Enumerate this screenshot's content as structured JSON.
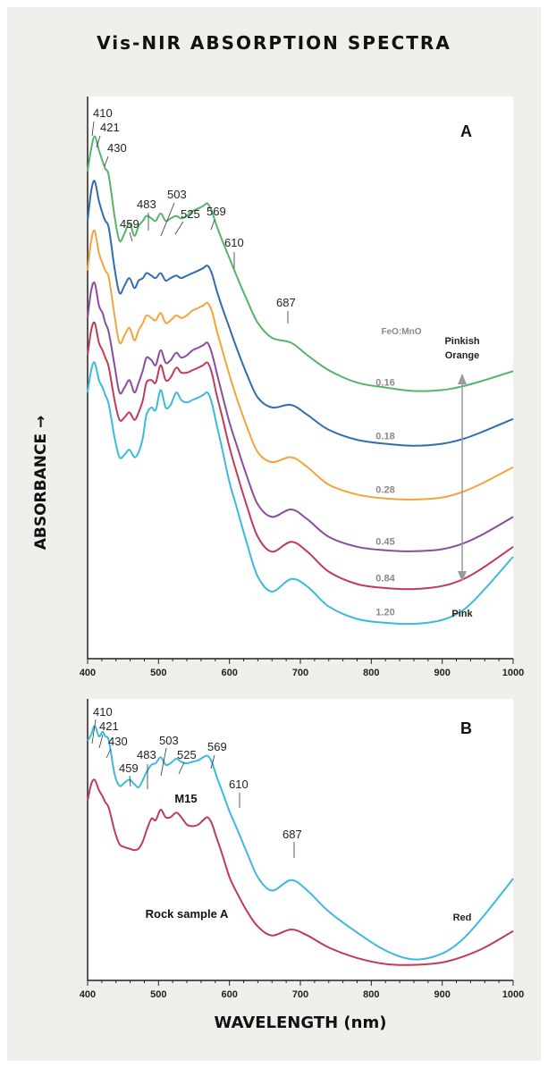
{
  "title": "Vis-NIR ABSORPTION SPECTRA",
  "ylabel": "ABSORBANCE",
  "ylabel_arrow": "→",
  "xlabel": "WAVELENGTH (nm)",
  "colors": {
    "green": "#56b46a",
    "blue": "#2f6db0",
    "orange": "#f3a43c",
    "purple": "#8a4d9e",
    "red": "#c23a5a",
    "cyan": "#3cbadd",
    "ratio_text": "#8a8a8a",
    "arrow": "#9a9a9a"
  },
  "chart_data": [
    {
      "panel_label": "A",
      "type": "line",
      "xlim": [
        400,
        1000
      ],
      "xticks": [
        400,
        500,
        600,
        700,
        800,
        900,
        1000
      ],
      "grid": false,
      "y_units": "relative absorbance (no scale)",
      "legend_title": "FeO:MnO",
      "series": [
        {
          "name": "0.16",
          "color": "#56b46a",
          "x": [
            400,
            405,
            410,
            416,
            421,
            425,
            430,
            438,
            445,
            452,
            459,
            466,
            472,
            478,
            483,
            490,
            496,
            503,
            510,
            517,
            525,
            532,
            540,
            548,
            556,
            563,
            569,
            575,
            582,
            590,
            600,
            610,
            625,
            640,
            660,
            687,
            710,
            740,
            780,
            820,
            860,
            900,
            930,
            960,
            1000
          ],
          "y": [
            9.8,
            10.25,
            10.5,
            10.22,
            10.0,
            9.85,
            9.7,
            8.9,
            8.4,
            8.55,
            8.75,
            8.5,
            8.7,
            8.8,
            8.9,
            8.85,
            8.8,
            8.95,
            8.8,
            8.85,
            8.9,
            8.85,
            8.9,
            9.0,
            9.05,
            9.1,
            9.15,
            9.0,
            8.7,
            8.4,
            8.05,
            7.7,
            7.2,
            6.75,
            6.45,
            6.35,
            6.1,
            5.8,
            5.55,
            5.45,
            5.38,
            5.4,
            5.48,
            5.6,
            5.78
          ]
        },
        {
          "name": "0.18",
          "color": "#2f6db0",
          "x": [
            400,
            405,
            410,
            416,
            421,
            425,
            430,
            438,
            445,
            452,
            459,
            466,
            472,
            478,
            483,
            490,
            496,
            503,
            510,
            517,
            525,
            532,
            540,
            548,
            556,
            563,
            569,
            575,
            582,
            590,
            600,
            610,
            625,
            640,
            660,
            687,
            710,
            740,
            780,
            820,
            860,
            900,
            930,
            960,
            1000
          ],
          "y": [
            8.8,
            9.4,
            9.6,
            9.2,
            8.95,
            8.8,
            8.65,
            7.85,
            7.35,
            7.5,
            7.65,
            7.45,
            7.6,
            7.65,
            7.75,
            7.7,
            7.65,
            7.75,
            7.6,
            7.65,
            7.7,
            7.65,
            7.7,
            7.75,
            7.8,
            7.85,
            7.9,
            7.75,
            7.4,
            7.05,
            6.65,
            6.25,
            5.7,
            5.25,
            5.05,
            5.1,
            4.9,
            4.6,
            4.4,
            4.32,
            4.28,
            4.32,
            4.42,
            4.58,
            4.82
          ]
        },
        {
          "name": "0.28",
          "color": "#f3a43c",
          "x": [
            400,
            405,
            410,
            416,
            421,
            425,
            430,
            438,
            445,
            452,
            459,
            466,
            472,
            478,
            483,
            490,
            496,
            503,
            510,
            517,
            525,
            532,
            540,
            548,
            556,
            563,
            569,
            575,
            582,
            590,
            600,
            610,
            625,
            640,
            660,
            687,
            710,
            740,
            780,
            820,
            860,
            900,
            930,
            960,
            1000
          ],
          "y": [
            7.8,
            8.4,
            8.6,
            8.15,
            7.95,
            7.8,
            7.65,
            6.9,
            6.35,
            6.5,
            6.65,
            6.4,
            6.6,
            6.75,
            6.9,
            6.85,
            6.8,
            6.95,
            6.75,
            6.8,
            6.9,
            6.85,
            6.9,
            7.0,
            7.05,
            7.1,
            7.15,
            7.0,
            6.6,
            6.2,
            5.7,
            5.25,
            4.65,
            4.15,
            3.95,
            4.05,
            3.85,
            3.5,
            3.3,
            3.22,
            3.2,
            3.24,
            3.36,
            3.55,
            3.85
          ]
        },
        {
          "name": "0.45",
          "color": "#8a4d9e",
          "x": [
            400,
            405,
            410,
            416,
            421,
            425,
            430,
            438,
            445,
            452,
            459,
            466,
            472,
            478,
            483,
            490,
            496,
            503,
            510,
            517,
            525,
            532,
            540,
            548,
            556,
            563,
            569,
            575,
            582,
            590,
            600,
            610,
            625,
            640,
            660,
            687,
            710,
            740,
            780,
            820,
            860,
            900,
            930,
            960,
            1000
          ],
          "y": [
            6.85,
            7.4,
            7.55,
            7.1,
            6.95,
            6.75,
            6.55,
            5.9,
            5.35,
            5.45,
            5.6,
            5.35,
            5.55,
            5.8,
            6.05,
            6.0,
            5.9,
            6.2,
            5.95,
            6.0,
            6.15,
            6.05,
            6.1,
            6.2,
            6.25,
            6.3,
            6.35,
            6.15,
            5.75,
            5.3,
            4.75,
            4.3,
            3.65,
            3.1,
            2.85,
            3.0,
            2.8,
            2.45,
            2.25,
            2.18,
            2.16,
            2.2,
            2.32,
            2.52,
            2.85
          ]
        },
        {
          "name": "0.84",
          "color": "#c23a5a",
          "x": [
            400,
            405,
            410,
            416,
            421,
            425,
            430,
            438,
            445,
            452,
            459,
            466,
            472,
            478,
            483,
            490,
            496,
            503,
            510,
            517,
            525,
            532,
            540,
            548,
            556,
            563,
            569,
            575,
            582,
            590,
            600,
            610,
            625,
            640,
            660,
            687,
            710,
            740,
            780,
            820,
            860,
            900,
            930,
            960,
            1000
          ],
          "y": [
            6.1,
            6.6,
            6.75,
            6.35,
            6.2,
            6.05,
            5.85,
            5.2,
            4.8,
            4.85,
            4.95,
            4.8,
            4.95,
            5.2,
            5.55,
            5.6,
            5.55,
            5.9,
            5.6,
            5.65,
            5.85,
            5.75,
            5.75,
            5.8,
            5.85,
            5.9,
            5.95,
            5.75,
            5.3,
            4.85,
            4.25,
            3.75,
            3.05,
            2.45,
            2.15,
            2.35,
            2.15,
            1.75,
            1.5,
            1.42,
            1.4,
            1.46,
            1.6,
            1.85,
            2.25
          ]
        },
        {
          "name": "1.20",
          "color": "#3cbadd",
          "x": [
            400,
            405,
            410,
            416,
            421,
            425,
            430,
            438,
            445,
            452,
            459,
            466,
            472,
            478,
            483,
            490,
            496,
            503,
            510,
            517,
            525,
            532,
            540,
            548,
            556,
            563,
            569,
            575,
            582,
            590,
            600,
            610,
            625,
            640,
            660,
            687,
            710,
            740,
            780,
            820,
            860,
            900,
            930,
            960,
            1000
          ],
          "y": [
            5.35,
            5.8,
            5.95,
            5.6,
            5.45,
            5.3,
            5.1,
            4.45,
            4.05,
            4.1,
            4.2,
            4.05,
            4.15,
            4.45,
            4.9,
            5.05,
            5.0,
            5.4,
            5.05,
            5.1,
            5.35,
            5.2,
            5.15,
            5.2,
            5.25,
            5.3,
            5.35,
            5.15,
            4.7,
            4.2,
            3.55,
            3.05,
            2.3,
            1.65,
            1.35,
            1.6,
            1.45,
            1.05,
            0.8,
            0.72,
            0.7,
            0.78,
            0.98,
            1.4,
            2.05
          ]
        }
      ],
      "peak_labels": [
        {
          "x": 410,
          "text": "410"
        },
        {
          "x": 421,
          "text": "421"
        },
        {
          "x": 430,
          "text": "430"
        },
        {
          "x": 459,
          "text": "459"
        },
        {
          "x": 483,
          "text": "483"
        },
        {
          "x": 503,
          "text": "503"
        },
        {
          "x": 525,
          "text": "525"
        },
        {
          "x": 569,
          "text": "569"
        },
        {
          "x": 610,
          "text": "610"
        },
        {
          "x": 687,
          "text": "687"
        }
      ],
      "range_annotation": {
        "top_label": "Pinkish Orange",
        "bottom_label": "Pink"
      }
    },
    {
      "panel_label": "B",
      "type": "line",
      "xlim": [
        400,
        1000
      ],
      "xticks": [
        400,
        500,
        600,
        700,
        800,
        900,
        1000
      ],
      "grid": false,
      "y_units": "relative absorbance (no scale)",
      "series": [
        {
          "name": "M15",
          "color": "#3cbadd",
          "x": [
            400,
            405,
            410,
            416,
            421,
            425,
            430,
            438,
            445,
            452,
            459,
            466,
            472,
            478,
            483,
            490,
            496,
            503,
            510,
            517,
            525,
            532,
            540,
            548,
            556,
            563,
            569,
            575,
            582,
            590,
            600,
            610,
            625,
            640,
            660,
            687,
            710,
            740,
            780,
            820,
            860,
            900,
            930,
            960,
            1000
          ],
          "y": [
            8.4,
            8.6,
            8.9,
            8.55,
            8.7,
            8.55,
            8.4,
            7.3,
            6.9,
            7.0,
            7.1,
            6.95,
            6.85,
            7.1,
            7.35,
            7.6,
            7.65,
            7.85,
            7.6,
            7.65,
            7.8,
            7.7,
            7.65,
            7.7,
            7.75,
            7.85,
            7.9,
            7.7,
            7.2,
            6.7,
            6.05,
            5.5,
            4.65,
            3.85,
            3.4,
            3.75,
            3.4,
            2.7,
            2.0,
            1.4,
            1.1,
            1.3,
            1.8,
            2.6,
            3.8
          ]
        },
        {
          "name": "Rock sample A",
          "color": "#c23a5a",
          "x": [
            400,
            405,
            410,
            416,
            421,
            425,
            430,
            438,
            445,
            452,
            459,
            466,
            472,
            478,
            483,
            490,
            496,
            503,
            510,
            517,
            525,
            532,
            540,
            548,
            556,
            563,
            569,
            575,
            582,
            590,
            600,
            610,
            625,
            640,
            660,
            687,
            710,
            740,
            780,
            820,
            860,
            900,
            930,
            960,
            1000
          ],
          "y": [
            6.4,
            6.95,
            7.1,
            6.75,
            6.55,
            6.35,
            6.15,
            5.4,
            4.95,
            4.85,
            4.8,
            4.75,
            4.8,
            5.05,
            5.4,
            5.8,
            5.75,
            6.1,
            5.85,
            5.85,
            6.0,
            5.85,
            5.6,
            5.55,
            5.6,
            5.75,
            5.85,
            5.65,
            5.15,
            4.6,
            3.85,
            3.35,
            2.7,
            2.2,
            1.9,
            2.1,
            1.9,
            1.5,
            1.15,
            0.95,
            0.92,
            1.0,
            1.2,
            1.5,
            2.05
          ]
        }
      ],
      "peak_labels": [
        {
          "x": 410,
          "text": "410"
        },
        {
          "x": 421,
          "text": "421"
        },
        {
          "x": 430,
          "text": "430"
        },
        {
          "x": 459,
          "text": "459"
        },
        {
          "x": 483,
          "text": "483"
        },
        {
          "x": 503,
          "text": "503"
        },
        {
          "x": 525,
          "text": "525"
        },
        {
          "x": 569,
          "text": "569"
        },
        {
          "x": 610,
          "text": "610"
        },
        {
          "x": 687,
          "text": "687"
        }
      ],
      "annotations": [
        {
          "text": "Red"
        }
      ]
    }
  ]
}
